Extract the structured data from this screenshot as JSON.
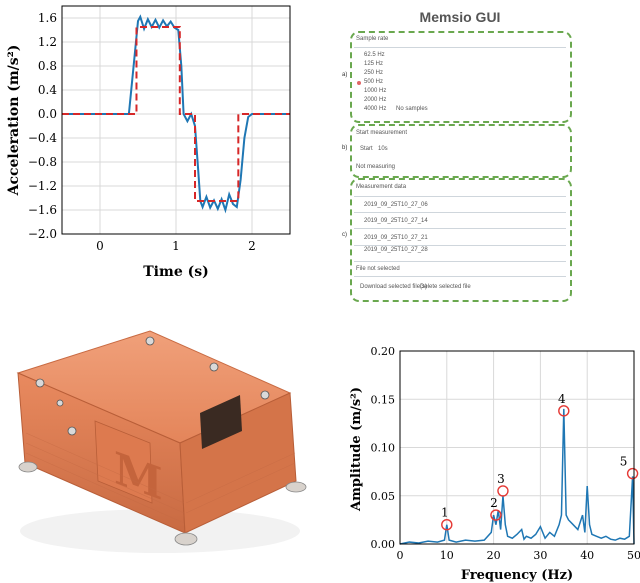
{
  "panel_a": {
    "chart_data": {
      "type": "line",
      "xlabel": "Time (s)",
      "ylabel": "Acceleration (m/s²)",
      "xlim": [
        -0.5,
        2.5
      ],
      "ylim": [
        -2.0,
        1.8
      ],
      "x_ticks": [
        "0",
        "1",
        "2"
      ],
      "y_ticks": [
        "1.6",
        "1.2",
        "0.8",
        "0.4",
        "0.0",
        "−0.4",
        "−0.8",
        "−1.2",
        "−1.6",
        "−2.0"
      ],
      "grid": true,
      "series": [
        {
          "color": "#d62728",
          "style": "dashed",
          "x": [
            -0.5,
            0.48,
            0.48,
            1.05,
            1.05,
            1.25,
            1.25,
            1.82,
            1.82,
            2.5
          ],
          "y": [
            0.0,
            0.0,
            1.45,
            1.45,
            0.0,
            0.0,
            -1.45,
            -1.45,
            0.0,
            0.0
          ]
        },
        {
          "color": "#1f77b4",
          "style": "solid",
          "x": [
            -0.5,
            0.38,
            0.45,
            0.5,
            0.53,
            0.58,
            0.63,
            0.68,
            0.73,
            0.78,
            0.83,
            0.88,
            0.93,
            0.98,
            1.03,
            1.07,
            1.1,
            1.15,
            1.2,
            1.25,
            1.29,
            1.32,
            1.35,
            1.4,
            1.45,
            1.5,
            1.55,
            1.6,
            1.65,
            1.7,
            1.75,
            1.8,
            1.85,
            1.9,
            1.95,
            2.0,
            2.5
          ],
          "y": [
            0.0,
            0.0,
            0.9,
            1.55,
            1.62,
            1.42,
            1.58,
            1.45,
            1.57,
            1.44,
            1.56,
            1.46,
            1.54,
            1.44,
            1.4,
            0.8,
            0.0,
            -0.12,
            0.0,
            -0.2,
            -0.9,
            -1.45,
            -1.55,
            -1.38,
            -1.56,
            -1.44,
            -1.58,
            -1.42,
            -1.6,
            -1.34,
            -1.5,
            -1.55,
            -1.1,
            -0.4,
            -0.05,
            0.0,
            0.0
          ]
        }
      ]
    }
  },
  "gui": {
    "title": "Memsio GUI",
    "section_a": {
      "tag": "a)",
      "heading": "Sample rate",
      "options": [
        "62.5 Hz",
        "125 Hz",
        "250 Hz",
        "500 Hz",
        "1000 Hz",
        "2000 Hz",
        "4000 Hz"
      ],
      "selected": "500 Hz",
      "samples_label": "No samples"
    },
    "section_b": {
      "tag": "b)",
      "heading": "Start measurement",
      "start_label": "Start",
      "duration_value": "10s",
      "status": "Not measuring"
    },
    "section_c": {
      "tag": "c)",
      "heading": "Measurement data",
      "files": [
        "2019_09_25T10_27_06",
        "2019_09_25T10_27_14",
        "2019_09_25T10_27_21",
        "2019_09_25T10_27_28"
      ],
      "file_status": "File not selected",
      "download_label": "Download selected file(s)",
      "delete_label": "Delete selected file"
    },
    "accent_color": "#6aa84f"
  },
  "panel_d": {
    "chart_data": {
      "type": "line",
      "xlabel": "Frequency (Hz)",
      "ylabel": "Amplitude (m/s²)",
      "xlim": [
        0,
        50
      ],
      "ylim": [
        0,
        0.2
      ],
      "x_ticks": [
        "0",
        "10",
        "20",
        "30",
        "40",
        "50"
      ],
      "y_ticks": [
        "0.00",
        "0.05",
        "0.10",
        "0.15",
        "0.20"
      ],
      "grid": true,
      "line_color": "#1f77b4",
      "spectrum": {
        "x": [
          0,
          2,
          4,
          6,
          8,
          9.5,
          10,
          10.5,
          12,
          14,
          16,
          18,
          19.5,
          20,
          20.5,
          21,
          21.5,
          22,
          22.5,
          23,
          24,
          25,
          26,
          26.5,
          27,
          28,
          29,
          30,
          31,
          32,
          33,
          34,
          34.5,
          35,
          35.5,
          36,
          37,
          38,
          39,
          39.5,
          40,
          40.5,
          41,
          42,
          43,
          44,
          45,
          46,
          47,
          48,
          49,
          49.7,
          50
        ],
        "y": [
          0.0,
          0.002,
          0.001,
          0.003,
          0.002,
          0.004,
          0.02,
          0.004,
          0.002,
          0.004,
          0.003,
          0.004,
          0.012,
          0.03,
          0.02,
          0.035,
          0.015,
          0.05,
          0.02,
          0.008,
          0.006,
          0.01,
          0.015,
          0.005,
          0.008,
          0.006,
          0.01,
          0.018,
          0.006,
          0.012,
          0.008,
          0.02,
          0.03,
          0.14,
          0.03,
          0.025,
          0.02,
          0.015,
          0.03,
          0.012,
          0.06,
          0.02,
          0.01,
          0.008,
          0.006,
          0.008,
          0.005,
          0.004,
          0.006,
          0.005,
          0.008,
          0.07,
          0.0
        ]
      },
      "annotations": [
        {
          "label": "1",
          "x": 10,
          "y": 0.02
        },
        {
          "label": "2",
          "x": 20.5,
          "y": 0.03
        },
        {
          "label": "3",
          "x": 22,
          "y": 0.055
        },
        {
          "label": "4",
          "x": 35,
          "y": 0.138
        },
        {
          "label": "5",
          "x": 49.7,
          "y": 0.073
        }
      ]
    }
  },
  "device_photo": {
    "logo_text": "M",
    "body_color": "#e98a5f",
    "edge_color": "#c86a42"
  }
}
